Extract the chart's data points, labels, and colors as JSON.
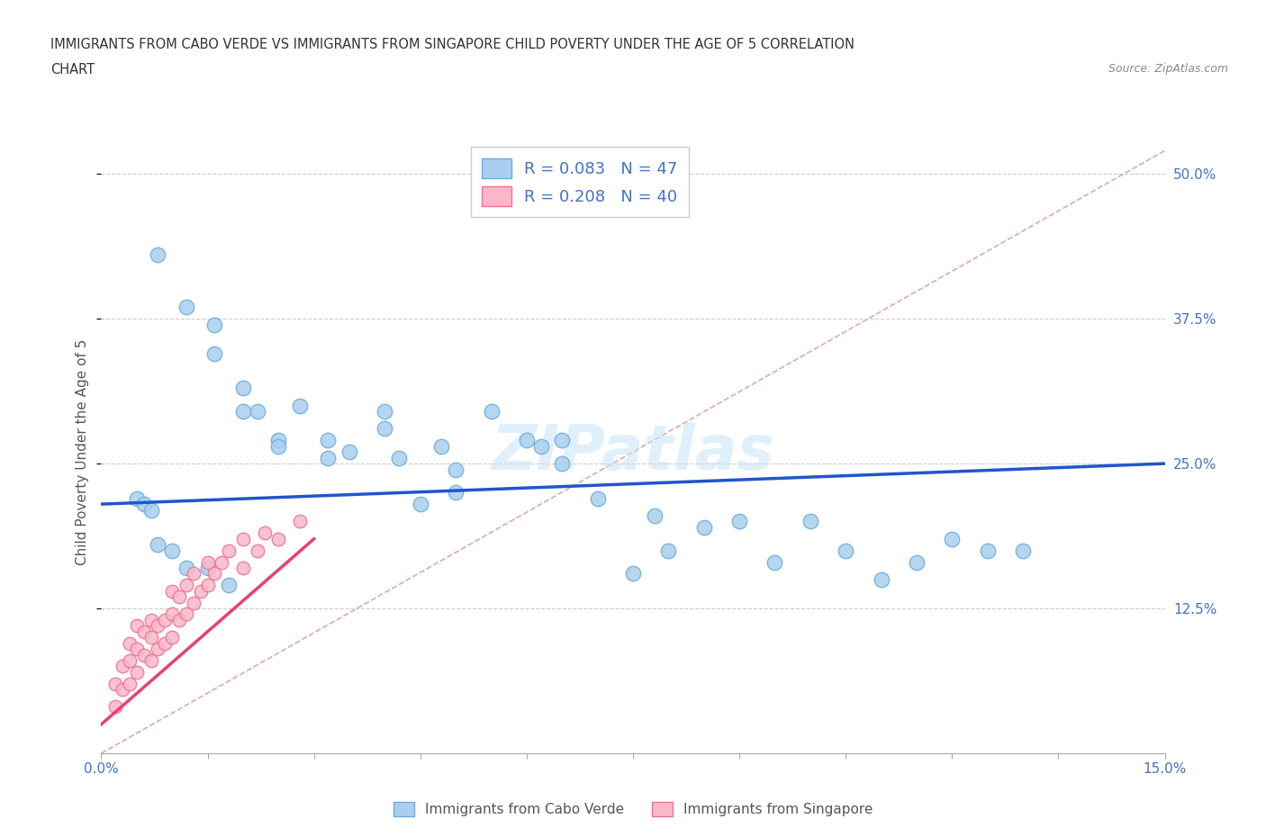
{
  "title_line1": "IMMIGRANTS FROM CABO VERDE VS IMMIGRANTS FROM SINGAPORE CHILD POVERTY UNDER THE AGE OF 5 CORRELATION",
  "title_line2": "CHART",
  "source_text": "Source: ZipAtlas.com",
  "ylabel": "Child Poverty Under the Age of 5",
  "xlim": [
    0.0,
    0.15
  ],
  "ylim": [
    0.0,
    0.52
  ],
  "cabo_verde_color": "#aacfee",
  "cabo_verde_edge_color": "#6aabde",
  "singapore_color": "#f9b8ca",
  "singapore_edge_color": "#f07090",
  "trend_cabo_color": "#2255cc",
  "trend_singapore_color": "#e84070",
  "trend_diagonal_color": "#ddaaaa",
  "legend_r_cabo": "R = 0.083",
  "legend_n_cabo": "N = 47",
  "legend_r_singapore": "R = 0.208",
  "legend_n_singapore": "N = 40",
  "watermark": "ZIPatlas",
  "cabo_verde_x": [
    0.008,
    0.012,
    0.016,
    0.016,
    0.02,
    0.02,
    0.022,
    0.025,
    0.025,
    0.028,
    0.032,
    0.032,
    0.035,
    0.04,
    0.04,
    0.042,
    0.045,
    0.048,
    0.05,
    0.05,
    0.055,
    0.06,
    0.062,
    0.065,
    0.065,
    0.07,
    0.075,
    0.078,
    0.08,
    0.085,
    0.09,
    0.095,
    0.1,
    0.105,
    0.11,
    0.115,
    0.12,
    0.125,
    0.13,
    0.005,
    0.006,
    0.007,
    0.008,
    0.01,
    0.012,
    0.015,
    0.018
  ],
  "cabo_verde_y": [
    0.43,
    0.385,
    0.37,
    0.345,
    0.315,
    0.295,
    0.295,
    0.27,
    0.265,
    0.3,
    0.27,
    0.255,
    0.26,
    0.28,
    0.295,
    0.255,
    0.215,
    0.265,
    0.245,
    0.225,
    0.295,
    0.27,
    0.265,
    0.25,
    0.27,
    0.22,
    0.155,
    0.205,
    0.175,
    0.195,
    0.2,
    0.165,
    0.2,
    0.175,
    0.15,
    0.165,
    0.185,
    0.175,
    0.175,
    0.22,
    0.215,
    0.21,
    0.18,
    0.175,
    0.16,
    0.16,
    0.145
  ],
  "singapore_x": [
    0.002,
    0.002,
    0.003,
    0.003,
    0.004,
    0.004,
    0.004,
    0.005,
    0.005,
    0.005,
    0.006,
    0.006,
    0.007,
    0.007,
    0.007,
    0.008,
    0.008,
    0.009,
    0.009,
    0.01,
    0.01,
    0.01,
    0.011,
    0.011,
    0.012,
    0.012,
    0.013,
    0.013,
    0.014,
    0.015,
    0.015,
    0.016,
    0.017,
    0.018,
    0.02,
    0.02,
    0.022,
    0.023,
    0.025,
    0.028
  ],
  "singapore_y": [
    0.04,
    0.06,
    0.055,
    0.075,
    0.06,
    0.08,
    0.095,
    0.07,
    0.09,
    0.11,
    0.085,
    0.105,
    0.08,
    0.1,
    0.115,
    0.09,
    0.11,
    0.095,
    0.115,
    0.1,
    0.12,
    0.14,
    0.115,
    0.135,
    0.12,
    0.145,
    0.13,
    0.155,
    0.14,
    0.145,
    0.165,
    0.155,
    0.165,
    0.175,
    0.16,
    0.185,
    0.175,
    0.19,
    0.185,
    0.2
  ],
  "cabo_trend_x0": 0.0,
  "cabo_trend_x1": 0.15,
  "cabo_trend_y0": 0.215,
  "cabo_trend_y1": 0.25,
  "sing_trend_x0": 0.0,
  "sing_trend_x1": 0.03,
  "sing_trend_y0": 0.025,
  "sing_trend_y1": 0.185
}
